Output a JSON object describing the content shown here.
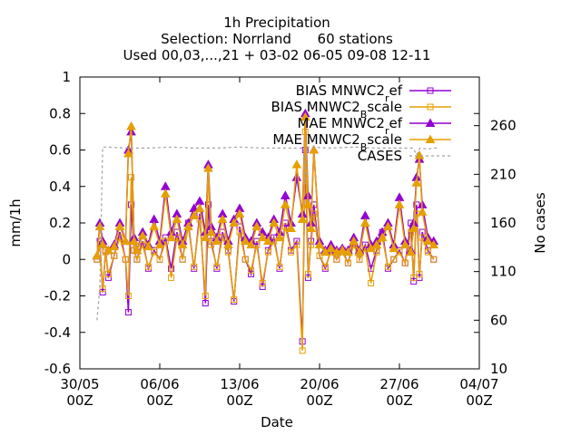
{
  "chart_data": {
    "type": "line",
    "title": [
      "1h Precipitation",
      "Selection: Norrland      60 stations",
      "Used 00,03,...,21 + 03-02 06-05 09-08 12-11"
    ],
    "xlabel": "Date",
    "ylabel": "mm/1h",
    "y2label": "No cases",
    "xlim": [
      0,
      35
    ],
    "ylim": [
      -0.6,
      1.0
    ],
    "y2lim": [
      10,
      310
    ],
    "x_ticks": [
      {
        "value": 0,
        "line1": "30/05",
        "line2": "00Z"
      },
      {
        "value": 7,
        "line1": "06/06",
        "line2": "00Z"
      },
      {
        "value": 14,
        "line1": "13/06",
        "line2": "00Z"
      },
      {
        "value": 21,
        "line1": "20/06",
        "line2": "00Z"
      },
      {
        "value": 28,
        "line1": "27/06",
        "line2": "00Z"
      },
      {
        "value": 35,
        "line1": "04/07",
        "line2": "00Z"
      }
    ],
    "y_ticks": [
      "-0.6",
      "-0.4",
      "-0.2",
      "0",
      "0.2",
      "0.4",
      "0.6",
      "0.8",
      "1"
    ],
    "y_tick_values": [
      -0.6,
      -0.4,
      -0.2,
      0,
      0.2,
      0.4,
      0.6,
      0.8,
      1.0
    ],
    "y2_ticks": [
      "10",
      "60",
      "110",
      "160",
      "210",
      "260"
    ],
    "y2_tick_values": [
      10,
      60,
      110,
      160,
      210,
      260
    ],
    "legend": {
      "position": "top-right",
      "entries": [
        {
          "prefix": "BIAS MNWC2",
          "sub": "r",
          "suffix": "ef",
          "color": "#9400d3",
          "marker": "square"
        },
        {
          "prefix": "BIAS MNWC2",
          "sub": "B",
          "suffix": "scale",
          "color": "#e69f00",
          "marker": "square"
        },
        {
          "prefix": "MAE MNWC2",
          "sub": "r",
          "suffix": "ef",
          "color": "#9400d3",
          "marker": "triangle"
        },
        {
          "prefix": "MAE MNWC2",
          "sub": "B",
          "suffix": "scale",
          "color": "#e69f00",
          "marker": "triangle"
        },
        {
          "prefix": "CASES",
          "sub": "",
          "suffix": "",
          "color": "#a0a0a0",
          "marker": "none"
        }
      ]
    },
    "series": [
      {
        "name": "BIAS MNWC2ref",
        "axis": "y",
        "color": "#9400d3",
        "marker": "square",
        "x": [
          1.5,
          1.75,
          2.0,
          2.25,
          2.5,
          3.0,
          3.5,
          4.0,
          4.25,
          4.5,
          4.75,
          5.0,
          5.5,
          6.0,
          6.5,
          7.0,
          7.5,
          8.0,
          8.5,
          9.0,
          9.5,
          10.0,
          10.5,
          11.0,
          11.25,
          11.5,
          12.0,
          12.5,
          13.0,
          13.5,
          14.0,
          14.5,
          15.0,
          15.5,
          16.0,
          16.5,
          17.0,
          17.5,
          18.0,
          18.5,
          19.0,
          19.5,
          19.75,
          20.0,
          20.25,
          20.5,
          21.0,
          21.5,
          22.0,
          22.5,
          23.0,
          23.5,
          24.0,
          24.5,
          25.0,
          25.5,
          26.0,
          26.5,
          27.0,
          27.5,
          28.0,
          28.5,
          29.0,
          29.25,
          29.5,
          29.75,
          30.0,
          30.5,
          31.0
        ],
        "y": [
          0,
          0.1,
          -0.18,
          0.05,
          -0.1,
          0.02,
          0.15,
          0.0,
          -0.29,
          0.3,
          0.05,
          0.0,
          0.1,
          -0.05,
          0.05,
          0.0,
          0.12,
          -0.05,
          0.15,
          0.0,
          0.2,
          -0.05,
          0.25,
          -0.24,
          0.3,
          0.1,
          -0.05,
          0.15,
          0.05,
          -0.23,
          0.18,
          0.0,
          -0.08,
          0.1,
          -0.15,
          0.05,
          0.12,
          -0.05,
          0.2,
          0.05,
          0.1,
          -0.45,
          0.6,
          -0.1,
          0.1,
          0.3,
          0.02,
          -0.05,
          0.05,
          0.0,
          0.05,
          -0.02,
          0.1,
          0.0,
          0.08,
          -0.05,
          0.05,
          0.15,
          -0.05,
          0.0,
          0.05,
          -0.02,
          0.2,
          -0.12,
          0.3,
          -0.1,
          0.15,
          0.05,
          0.0
        ]
      },
      {
        "name": "BIAS MNWC2Bscale",
        "axis": "y",
        "color": "#e69f00",
        "marker": "square",
        "x": [
          1.5,
          1.75,
          2.0,
          2.25,
          2.5,
          3.0,
          3.5,
          4.0,
          4.25,
          4.5,
          4.75,
          5.0,
          5.5,
          6.0,
          6.5,
          7.0,
          7.5,
          8.0,
          8.5,
          9.0,
          9.5,
          10.0,
          10.5,
          11.0,
          11.25,
          11.5,
          12.0,
          12.5,
          13.0,
          13.5,
          14.0,
          14.5,
          15.0,
          15.5,
          16.0,
          16.5,
          17.0,
          17.5,
          18.0,
          18.5,
          19.0,
          19.5,
          19.75,
          20.0,
          20.25,
          20.5,
          21.0,
          21.5,
          22.0,
          22.5,
          23.0,
          23.5,
          24.0,
          24.5,
          25.0,
          25.5,
          26.0,
          26.5,
          27.0,
          27.5,
          28.0,
          28.5,
          29.0,
          29.25,
          29.5,
          29.75,
          30.0,
          30.5,
          31.0
        ],
        "y": [
          0,
          0.08,
          -0.16,
          0.04,
          -0.08,
          0.02,
          0.12,
          0.0,
          -0.2,
          0.45,
          0.05,
          0.0,
          0.08,
          -0.04,
          0.04,
          0.0,
          0.1,
          -0.1,
          0.12,
          0.0,
          0.18,
          -0.04,
          0.22,
          -0.2,
          0.5,
          0.08,
          -0.04,
          0.12,
          0.04,
          -0.22,
          0.15,
          0.0,
          -0.06,
          0.08,
          -0.13,
          0.04,
          0.1,
          -0.04,
          0.18,
          0.04,
          0.08,
          -0.5,
          0.7,
          -0.08,
          0.08,
          0.25,
          0.02,
          -0.04,
          0.04,
          0.0,
          0.04,
          -0.02,
          0.08,
          0.0,
          0.06,
          -0.13,
          0.04,
          0.12,
          -0.04,
          0.0,
          0.04,
          -0.02,
          0.15,
          -0.1,
          0.25,
          -0.08,
          0.12,
          0.04,
          0.0
        ]
      },
      {
        "name": "MAE MNWC2ref",
        "axis": "y",
        "color": "#9400d3",
        "marker": "triangle",
        "x": [
          1.5,
          1.75,
          2.0,
          2.5,
          3.0,
          3.5,
          4.0,
          4.25,
          4.5,
          4.75,
          5.0,
          5.5,
          6.0,
          6.5,
          7.0,
          7.5,
          8.0,
          8.5,
          9.0,
          9.5,
          10.0,
          10.5,
          11.0,
          11.25,
          11.5,
          12.0,
          12.5,
          13.0,
          13.5,
          14.0,
          14.5,
          15.0,
          15.5,
          16.0,
          16.5,
          17.0,
          17.5,
          18.0,
          18.5,
          19.0,
          19.5,
          19.75,
          20.0,
          20.25,
          20.5,
          21.0,
          21.5,
          22.0,
          22.5,
          23.0,
          23.5,
          24.0,
          24.5,
          25.0,
          25.5,
          26.0,
          26.5,
          27.0,
          27.5,
          28.0,
          28.5,
          29.0,
          29.25,
          29.5,
          29.75,
          30.0,
          30.5,
          31.0
        ],
        "y": [
          0.02,
          0.2,
          0.1,
          0.05,
          0.08,
          0.2,
          0.1,
          0.6,
          0.7,
          0.12,
          0.05,
          0.15,
          0.08,
          0.22,
          0.1,
          0.4,
          0.15,
          0.25,
          0.1,
          0.2,
          0.28,
          0.32,
          0.15,
          0.52,
          0.18,
          0.12,
          0.25,
          0.1,
          0.22,
          0.28,
          0.12,
          0.1,
          0.2,
          0.15,
          0.12,
          0.22,
          0.15,
          0.35,
          0.2,
          0.45,
          0.25,
          0.8,
          0.35,
          0.2,
          0.6,
          0.1,
          0.05,
          0.08,
          0.05,
          0.06,
          0.05,
          0.12,
          0.05,
          0.24,
          0.08,
          0.1,
          0.15,
          0.2,
          0.08,
          0.34,
          0.1,
          0.05,
          0.2,
          0.45,
          0.55,
          0.3,
          0.12,
          0.1
        ]
      },
      {
        "name": "MAE MNWC2Bscale",
        "axis": "y",
        "color": "#e69f00",
        "marker": "triangle",
        "x": [
          1.5,
          1.75,
          2.0,
          2.5,
          3.0,
          3.5,
          4.0,
          4.25,
          4.5,
          4.75,
          5.0,
          5.5,
          6.0,
          6.5,
          7.0,
          7.5,
          8.0,
          8.5,
          9.0,
          9.5,
          10.0,
          10.5,
          11.0,
          11.25,
          11.5,
          12.0,
          12.5,
          13.0,
          13.5,
          14.0,
          14.5,
          15.0,
          15.5,
          16.0,
          16.5,
          17.0,
          17.5,
          18.0,
          18.5,
          19.0,
          19.5,
          19.75,
          20.0,
          20.25,
          20.5,
          21.0,
          21.5,
          22.0,
          22.5,
          23.0,
          23.5,
          24.0,
          24.5,
          25.0,
          25.5,
          26.0,
          26.5,
          27.0,
          27.5,
          28.0,
          28.5,
          29.0,
          29.25,
          29.5,
          29.75,
          30.0,
          30.5,
          31.0
        ],
        "y": [
          0.02,
          0.18,
          0.08,
          0.05,
          0.07,
          0.18,
          0.1,
          0.58,
          0.73,
          0.1,
          0.05,
          0.13,
          0.07,
          0.18,
          0.08,
          0.36,
          0.12,
          0.22,
          0.08,
          0.18,
          0.24,
          0.28,
          0.12,
          0.5,
          0.15,
          0.1,
          0.22,
          0.08,
          0.2,
          0.25,
          0.1,
          0.08,
          0.18,
          0.12,
          0.1,
          0.2,
          0.12,
          0.3,
          0.17,
          0.52,
          0.22,
          0.78,
          0.3,
          0.17,
          0.6,
          0.08,
          0.04,
          0.06,
          0.04,
          0.05,
          0.04,
          0.1,
          0.04,
          0.2,
          0.06,
          0.08,
          0.12,
          0.18,
          0.06,
          0.3,
          0.08,
          0.04,
          0.17,
          0.42,
          0.57,
          0.26,
          0.1,
          0.08
        ]
      },
      {
        "name": "CASES",
        "axis": "y2",
        "color": "#a0a0a0",
        "marker": "none",
        "dashed": true,
        "x": [
          1.5,
          1.75,
          2.0,
          2.5,
          4.0,
          6.0,
          8.0,
          10.0,
          12.0,
          14.0,
          16.0,
          18.0,
          19.6,
          19.75,
          19.9,
          20.0,
          22.0,
          24.0,
          26.0,
          28.0,
          29.2,
          29.5,
          29.8,
          30.5,
          31.0,
          31.5
        ],
        "y": [
          60,
          95,
          238,
          238,
          237,
          237,
          238,
          237,
          237,
          238,
          237,
          237,
          237,
          200,
          237,
          238,
          237,
          238,
          237,
          237,
          237,
          230,
          237,
          236,
          237,
          237
        ]
      }
    ]
  }
}
